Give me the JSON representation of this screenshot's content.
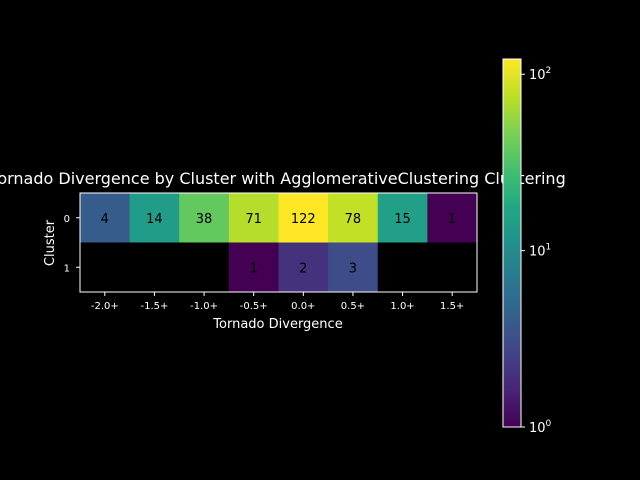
{
  "chart_data": {
    "type": "heatmap",
    "title": "Tornado Divergence by Cluster with AgglomerativeClustering Clustering",
    "xlabel": "Tornado Divergence",
    "ylabel": "Cluster",
    "x_categories": [
      "-2.0+",
      "-1.5+",
      "-1.0+",
      "-0.5+",
      "0.0+",
      "0.5+",
      "1.0+",
      "1.5+"
    ],
    "y_categories": [
      "0",
      "1"
    ],
    "values": [
      [
        4,
        14,
        38,
        71,
        122,
        78,
        15,
        1
      ],
      [
        null,
        null,
        null,
        1,
        2,
        3,
        null,
        null
      ]
    ],
    "colorbar": {
      "scale": "log",
      "range": [
        1,
        122
      ],
      "colormap": "viridis",
      "ticks": [
        {
          "value": 1,
          "base": "10",
          "exp": "0"
        },
        {
          "value": 10,
          "base": "10",
          "exp": "1"
        },
        {
          "value": 100,
          "base": "10",
          "exp": "2"
        }
      ]
    },
    "empty_cell_color": "#000000",
    "background": "#000000"
  }
}
